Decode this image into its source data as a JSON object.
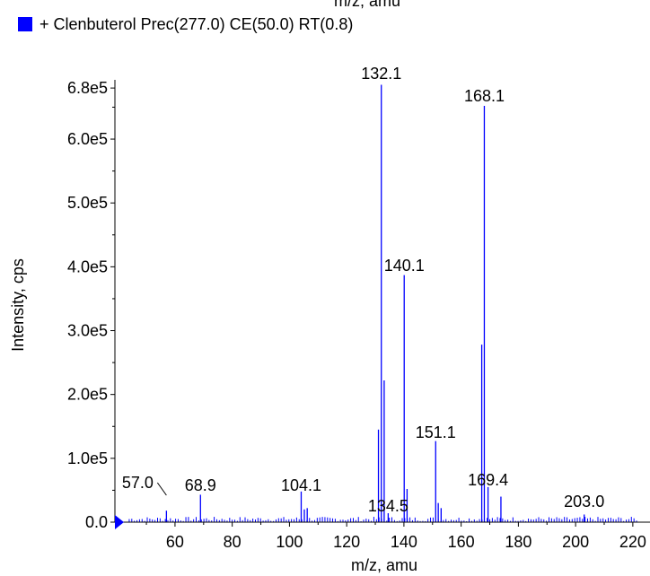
{
  "top_cut_text": "m/z, amu",
  "chart_data": {
    "type": "bar",
    "legend": [
      {
        "label": "+ Clenbuterol Prec(277.0) CE(50.0) RT(0.8)",
        "color": "#0000ff"
      }
    ],
    "xlabel": "m/z, amu",
    "ylabel": "Intensity, cps",
    "xlim": [
      39,
      226
    ],
    "ylim": [
      0,
      690000
    ],
    "xticks": [
      60,
      80,
      100,
      120,
      140,
      160,
      180,
      200,
      220
    ],
    "yticks": [
      {
        "v": 0,
        "label": "0.0"
      },
      {
        "v": 100000,
        "label": "1.0e5"
      },
      {
        "v": 200000,
        "label": "2.0e5"
      },
      {
        "v": 300000,
        "label": "3.0e5"
      },
      {
        "v": 400000,
        "label": "4.0e5"
      },
      {
        "v": 500000,
        "label": "5.0e5"
      },
      {
        "v": 600000,
        "label": "6.0e5"
      },
      {
        "v": 680000,
        "label": "6.8e5"
      }
    ],
    "peaks": [
      {
        "x": 57.0,
        "y": 18000
      },
      {
        "x": 68.9,
        "y": 43000
      },
      {
        "x": 104.1,
        "y": 48000
      },
      {
        "x": 105.2,
        "y": 20000
      },
      {
        "x": 106.2,
        "y": 22000
      },
      {
        "x": 131.1,
        "y": 145000
      },
      {
        "x": 132.1,
        "y": 685000
      },
      {
        "x": 133.1,
        "y": 222000
      },
      {
        "x": 134.5,
        "y": 14000
      },
      {
        "x": 140.1,
        "y": 387000
      },
      {
        "x": 141.1,
        "y": 52000
      },
      {
        "x": 151.1,
        "y": 127000
      },
      {
        "x": 152.0,
        "y": 30000
      },
      {
        "x": 153.0,
        "y": 22000
      },
      {
        "x": 167.2,
        "y": 278000
      },
      {
        "x": 168.1,
        "y": 652000
      },
      {
        "x": 169.4,
        "y": 55000
      },
      {
        "x": 173.9,
        "y": 40000
      },
      {
        "x": 203.0,
        "y": 12000
      }
    ],
    "peak_labels": [
      "57.0",
      "68.9",
      "104.1",
      "132.1",
      "134.5",
      "140.1",
      "151.1",
      "168.1",
      "169.4",
      "203.0"
    ]
  }
}
